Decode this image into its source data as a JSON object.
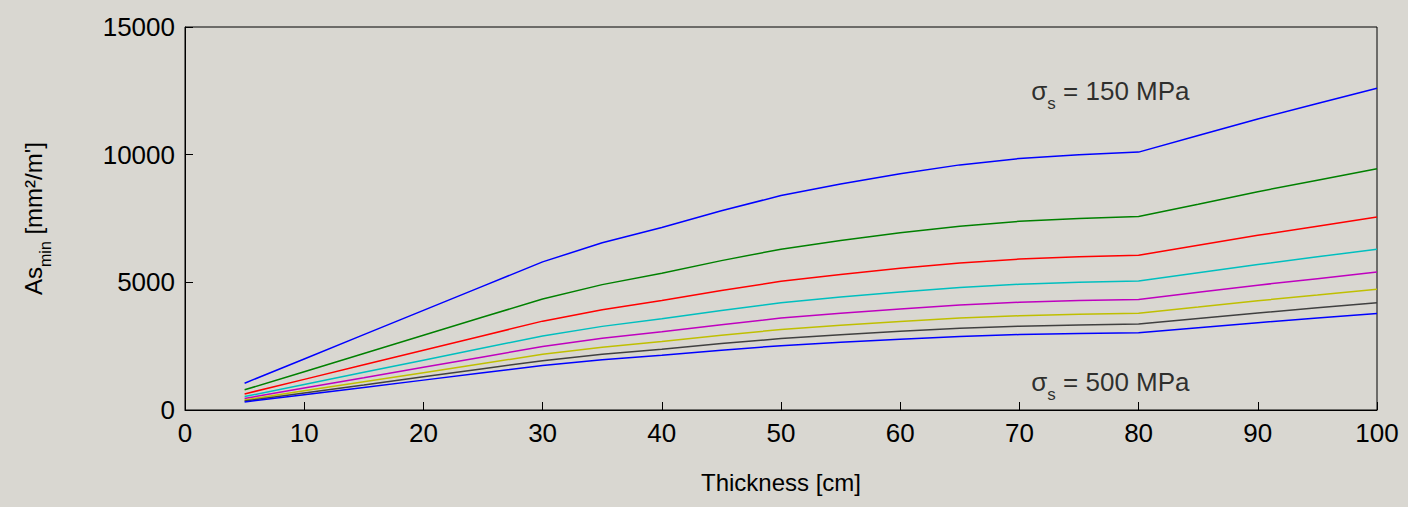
{
  "chart_data": {
    "type": "line",
    "xlabel": "Thickness [cm]",
    "ylabel": {
      "text": "As",
      "subscript": "min",
      "suffix": " [mm²/m']"
    },
    "x": [
      5,
      10,
      15,
      20,
      25,
      30,
      35,
      40,
      45,
      50,
      55,
      60,
      65,
      70,
      75,
      80,
      85,
      90,
      95,
      100
    ],
    "series": [
      {
        "color": "#0000ff",
        "values": [
          1050,
          2000,
          2950,
          3900,
          4850,
          5800,
          6550,
          7150,
          7800,
          8400,
          8850,
          9250,
          9600,
          9850,
          10000,
          10100,
          10750,
          11400,
          12000,
          12600
        ]
      },
      {
        "color": "#008000",
        "values": [
          790,
          1500,
          2210,
          2930,
          3640,
          4350,
          4910,
          5360,
          5850,
          6300,
          6640,
          6940,
          7200,
          7390,
          7500,
          7580,
          8060,
          8550,
          9000,
          9450
        ]
      },
      {
        "color": "#ff0000",
        "values": [
          630,
          1200,
          1770,
          2340,
          2910,
          3480,
          3930,
          4290,
          4680,
          5040,
          5310,
          5550,
          5760,
          5910,
          6000,
          6060,
          6450,
          6840,
          7200,
          7560
        ]
      },
      {
        "color": "#00bfbf",
        "values": [
          525,
          1000,
          1475,
          1950,
          2425,
          2900,
          3275,
          3575,
          3900,
          4200,
          4425,
          4625,
          4800,
          4925,
          5000,
          5050,
          5375,
          5700,
          6000,
          6300
        ]
      },
      {
        "color": "#bf00bf",
        "values": [
          450,
          860,
          1260,
          1670,
          2080,
          2490,
          2810,
          3060,
          3340,
          3600,
          3790,
          3960,
          4110,
          4220,
          4290,
          4330,
          4610,
          4890,
          5140,
          5400
        ]
      },
      {
        "color": "#bfbf00",
        "values": [
          390,
          750,
          1110,
          1460,
          1820,
          2180,
          2460,
          2680,
          2930,
          3150,
          3320,
          3470,
          3600,
          3690,
          3750,
          3790,
          4030,
          4280,
          4500,
          4730
        ]
      },
      {
        "color": "#404040",
        "values": [
          350,
          670,
          980,
          1300,
          1620,
          1930,
          2180,
          2380,
          2600,
          2800,
          2950,
          3080,
          3200,
          3280,
          3330,
          3370,
          3580,
          3800,
          4000,
          4200
        ]
      },
      {
        "color": "#0000ff",
        "values": [
          315,
          600,
          885,
          1170,
          1455,
          1740,
          1965,
          2145,
          2340,
          2520,
          2655,
          2775,
          2880,
          2955,
          3000,
          3030,
          3225,
          3420,
          3600,
          3780
        ]
      }
    ],
    "annotations": [
      {
        "text": "σ",
        "subscript": "s",
        "suffix": " = 150 MPa",
        "x": 71,
        "y": 12600
      },
      {
        "text": "σ",
        "subscript": "s",
        "suffix": " = 500 MPa",
        "x": 71,
        "y": 1200
      }
    ],
    "xlim": [
      0,
      100
    ],
    "xticks": [
      0,
      10,
      20,
      30,
      40,
      50,
      60,
      70,
      80,
      90,
      100
    ],
    "ylim": [
      0,
      15000
    ],
    "yticks": [
      0,
      5000,
      10000,
      15000
    ],
    "grid": false,
    "marker": "none"
  }
}
